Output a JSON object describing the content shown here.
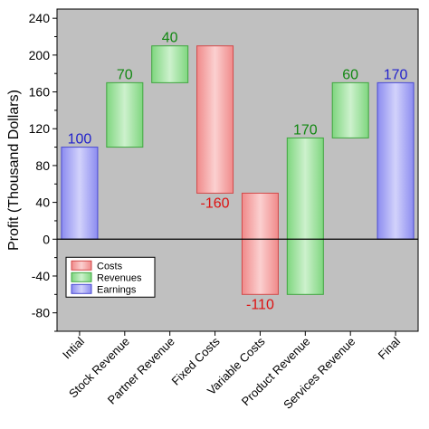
{
  "chart_data": {
    "type": "bar",
    "subtype": "waterfall",
    "title": "",
    "xlabel": "",
    "ylabel": "Profit (Thousand Dollars)",
    "ylim": [
      -100,
      250
    ],
    "yticks": [
      -80,
      -40,
      0,
      40,
      80,
      120,
      160,
      200,
      240
    ],
    "categories": [
      "Intial",
      "Stock Revenue",
      "Partner Revenue",
      "Fixed Costs",
      "Variable Costs",
      "Product Revenue",
      "Services Revenue",
      "Final"
    ],
    "bars": [
      {
        "category": "Intial",
        "kind": "Earnings",
        "start": 0,
        "end": 100,
        "label": "100"
      },
      {
        "category": "Stock Revenue",
        "kind": "Revenues",
        "start": 100,
        "end": 170,
        "label": "70"
      },
      {
        "category": "Partner Revenue",
        "kind": "Revenues",
        "start": 170,
        "end": 210,
        "label": "40"
      },
      {
        "category": "Fixed Costs",
        "kind": "Costs",
        "start": 210,
        "end": 50,
        "label": "-160"
      },
      {
        "category": "Variable Costs",
        "kind": "Costs",
        "start": 50,
        "end": -60,
        "label": "-110"
      },
      {
        "category": "Product Revenue",
        "kind": "Revenues",
        "start": -60,
        "end": 110,
        "label": "170"
      },
      {
        "category": "Services Revenue",
        "kind": "Revenues",
        "start": 110,
        "end": 170,
        "label": "60"
      },
      {
        "category": "Final",
        "kind": "Earnings",
        "start": 0,
        "end": 170,
        "label": "170"
      }
    ],
    "legend": {
      "placement": "lower-left",
      "entries": [
        {
          "name": "Costs",
          "kind": "Costs"
        },
        {
          "name": "Revenues",
          "kind": "Revenues"
        },
        {
          "name": "Earnings",
          "kind": "Earnings"
        }
      ]
    },
    "colors": {
      "Costs": {
        "fill": "#f08a8a",
        "light": "#fbd0d0",
        "stroke": "#d24a4a",
        "label": "#dd1111"
      },
      "Revenues": {
        "fill": "#7fd67f",
        "light": "#cdf1cd",
        "stroke": "#3fa63f",
        "label": "#118811"
      },
      "Earnings": {
        "fill": "#8c8cf0",
        "light": "#d2d2fb",
        "stroke": "#4a4ad2",
        "label": "#2222cc"
      },
      "plot_background": "#c0c0c0"
    },
    "grid": false
  }
}
